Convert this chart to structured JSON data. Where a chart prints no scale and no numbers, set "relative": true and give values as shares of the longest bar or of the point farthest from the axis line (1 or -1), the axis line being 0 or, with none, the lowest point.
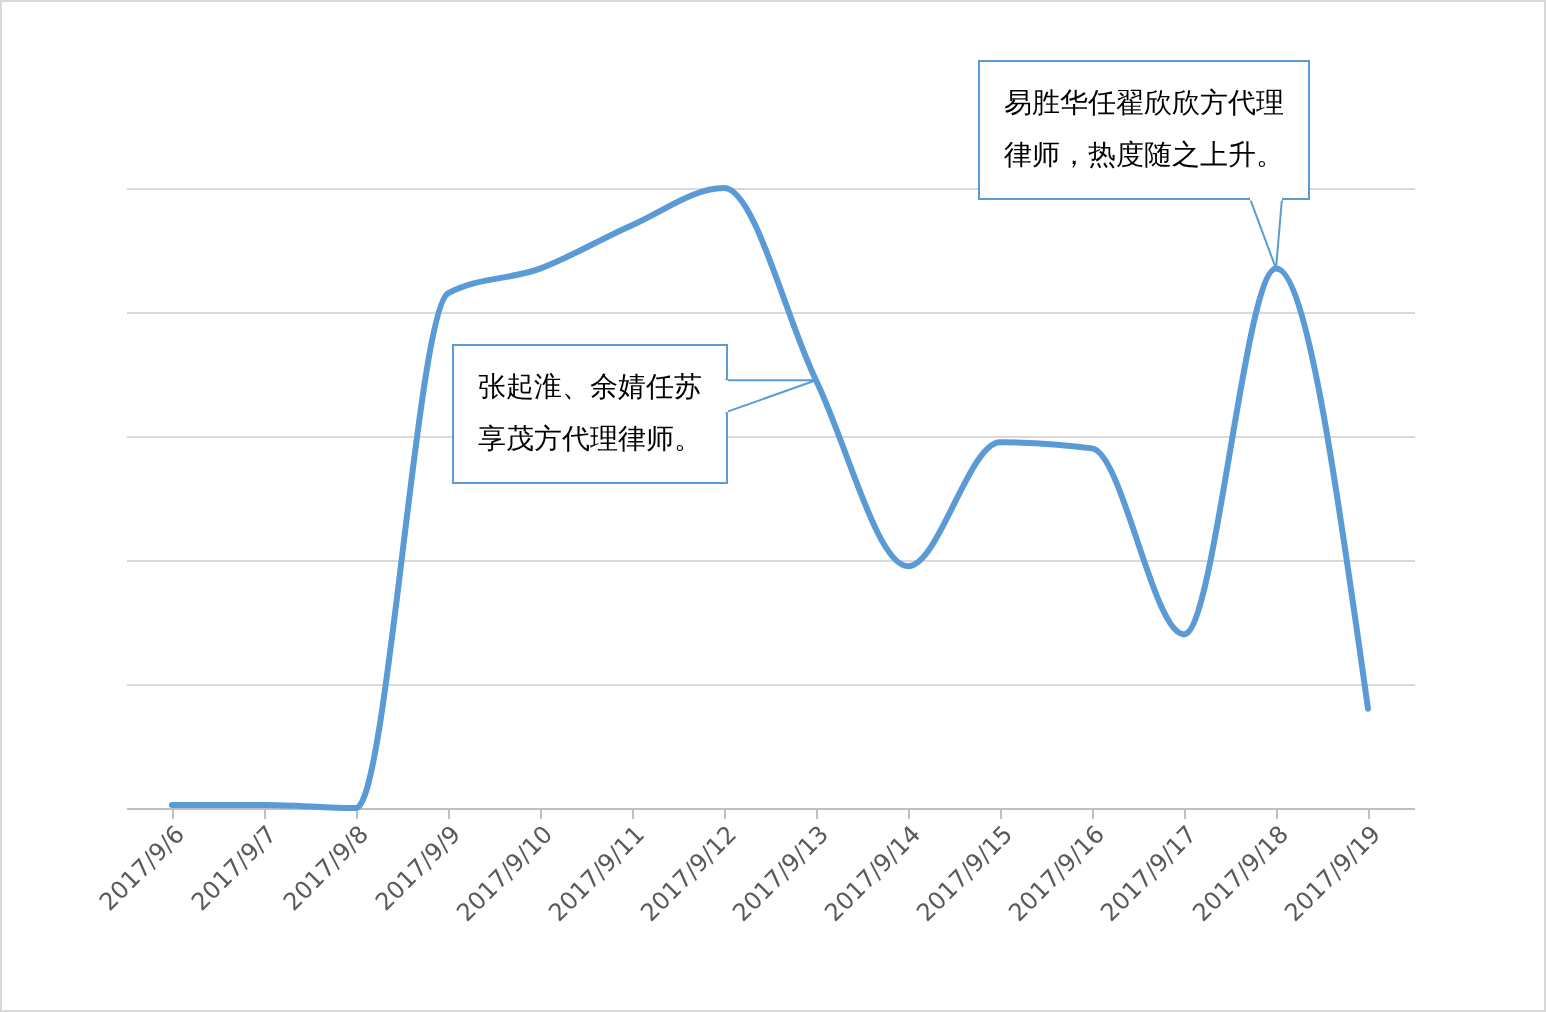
{
  "chart_data": {
    "type": "line",
    "relative": true,
    "grid": "y",
    "line_style": "solid",
    "marker": "none",
    "categories": [
      "2017/9/6",
      "2017/9/7",
      "2017/9/8",
      "2017/9/9",
      "2017/9/10",
      "2017/9/11",
      "2017/9/12",
      "2017/9/13",
      "2017/9/14",
      "2017/9/15",
      "2017/9/16",
      "2017/9/17",
      "2017/9/18",
      "2017/9/19"
    ],
    "series": [
      {
        "color": "#5b9bd5",
        "values": [
          0.005,
          0.005,
          0.0,
          0.83,
          0.87,
          0.94,
          1.0,
          0.69,
          0.39,
          0.59,
          0.58,
          0.28,
          0.87,
          0.16
        ]
      }
    ],
    "annotations": [
      {
        "text": "张起淮、余婧任苏享茂方代理律师。",
        "x": "2017/9/13",
        "y": 0.69
      },
      {
        "text": "易胜华任翟欣欣方代理律师，热度随之上升。",
        "x": "2017/9/18",
        "y": 0.87
      }
    ]
  }
}
